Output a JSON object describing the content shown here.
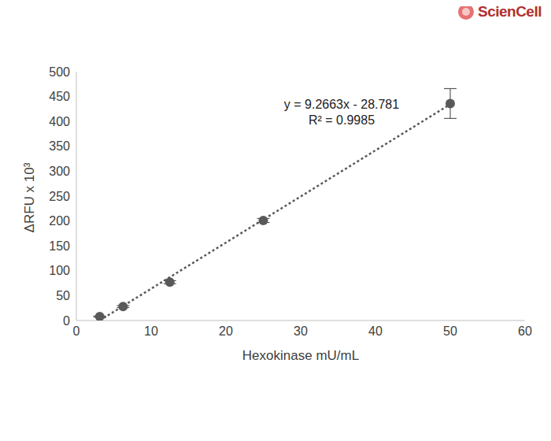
{
  "chart_data": {
    "type": "scatter",
    "logo": "ScienCell",
    "xlabel": "Hexokinase mU/mL",
    "ylabel": "ΔRFU x 10³",
    "x": [
      3.125,
      6.25,
      12.5,
      25,
      50
    ],
    "values": [
      8,
      28,
      77,
      201,
      436
    ],
    "errors": [
      1,
      2,
      3,
      4,
      30
    ],
    "color": "#595959",
    "marker": "circle",
    "trendline": {
      "x": [
        3.125,
        50
      ],
      "values": [
        0.2,
        434.5
      ],
      "line_style": "dotted",
      "color": "#595959"
    },
    "annotations": [
      "y = 9.2663x - 28.781",
      "R² = 0.9985"
    ],
    "xlim": [
      0,
      60
    ],
    "xticks": [
      0,
      10,
      20,
      30,
      40,
      50,
      60
    ],
    "ylim": [
      0,
      500
    ],
    "yticks": [
      0,
      50,
      100,
      150,
      200,
      250,
      300,
      350,
      400,
      450,
      500
    ],
    "grid": false
  }
}
